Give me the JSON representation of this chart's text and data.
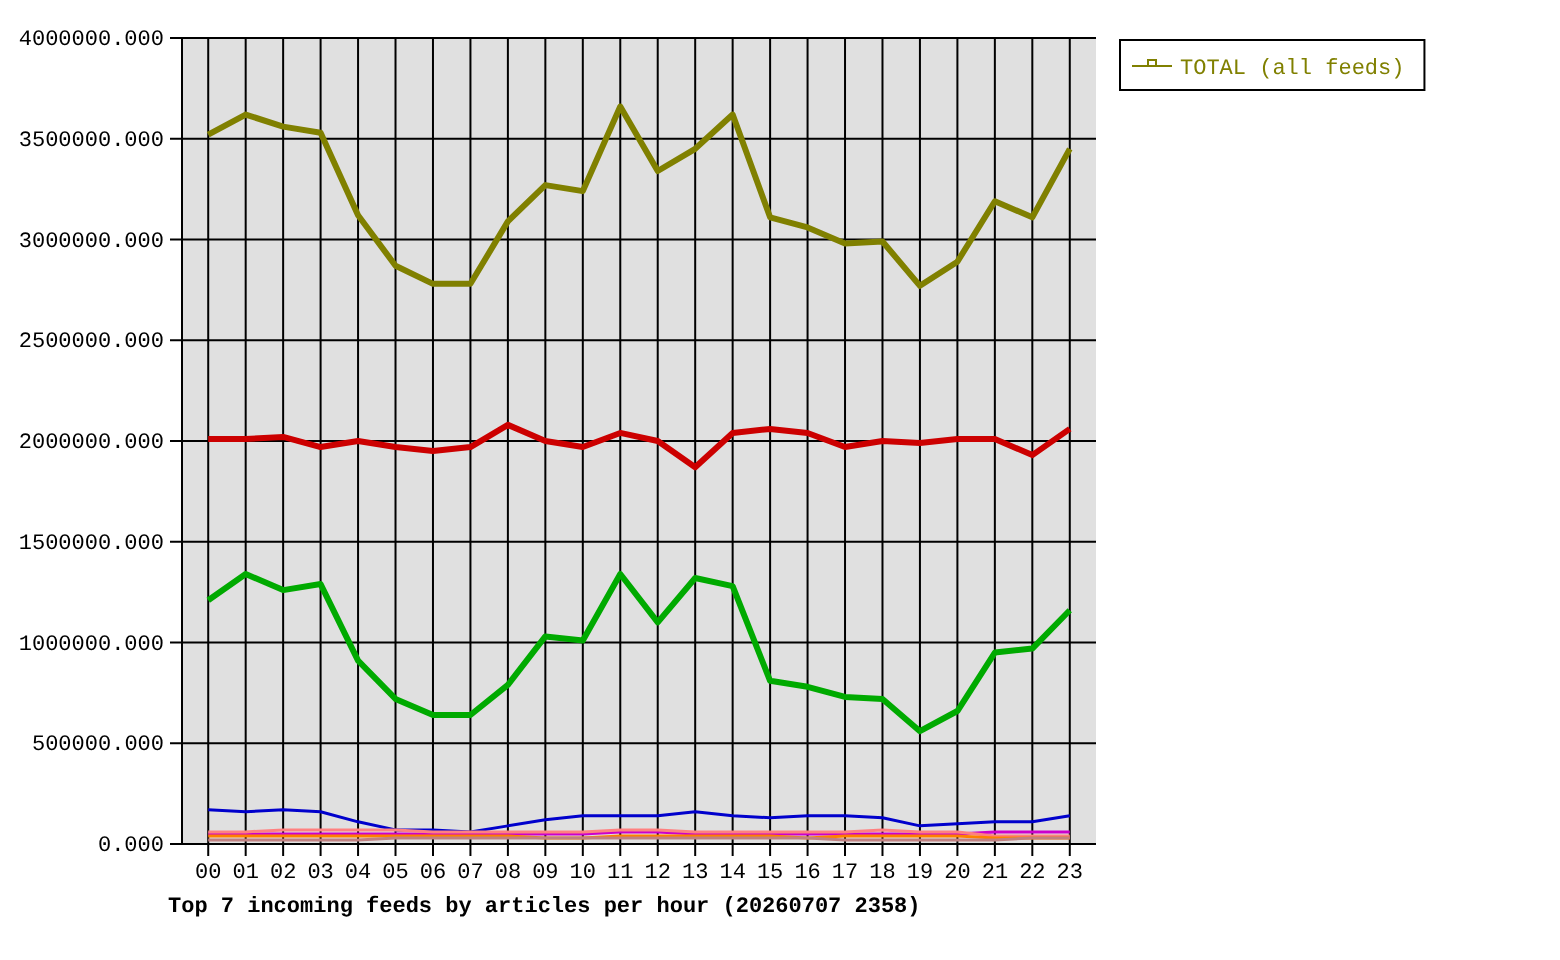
{
  "chart_data": {
    "type": "line",
    "title": "Top 7 incoming feeds by articles per hour (20260707 2358)",
    "categories": [
      "00",
      "01",
      "02",
      "03",
      "04",
      "05",
      "06",
      "07",
      "08",
      "09",
      "10",
      "11",
      "12",
      "13",
      "14",
      "15",
      "16",
      "17",
      "18",
      "19",
      "20",
      "21",
      "22",
      "23"
    ],
    "series": [
      {
        "color": "#cc0000",
        "values": [
          2010000,
          2010000,
          2020000,
          1970000,
          2000000,
          1970000,
          1950000,
          1970000,
          2080000,
          2000000,
          1970000,
          2040000,
          2000000,
          1870000,
          2040000,
          2060000,
          2040000,
          1970000,
          2000000,
          1990000,
          2010000,
          2010000,
          1930000,
          2060000
        ]
      },
      {
        "color": "#00aa00",
        "values": [
          1210000,
          1340000,
          1260000,
          1290000,
          910000,
          720000,
          640000,
          640000,
          790000,
          1030000,
          1010000,
          1340000,
          1100000,
          1320000,
          1280000,
          810000,
          780000,
          730000,
          720000,
          560000,
          660000,
          950000,
          970000,
          1160000
        ]
      },
      {
        "color": "#0000cc",
        "values": [
          170000,
          160000,
          170000,
          160000,
          110000,
          70000,
          70000,
          60000,
          90000,
          120000,
          140000,
          140000,
          140000,
          160000,
          140000,
          130000,
          140000,
          140000,
          130000,
          90000,
          100000,
          110000,
          110000,
          140000
        ]
      },
      {
        "color": "#cc00cc",
        "values": [
          50000,
          50000,
          50000,
          50000,
          50000,
          50000,
          50000,
          50000,
          50000,
          50000,
          50000,
          60000,
          60000,
          50000,
          50000,
          50000,
          50000,
          50000,
          50000,
          50000,
          50000,
          60000,
          60000,
          60000
        ]
      },
      {
        "color": "#ff8080",
        "values": [
          60000,
          60000,
          70000,
          70000,
          70000,
          70000,
          60000,
          60000,
          60000,
          60000,
          60000,
          70000,
          70000,
          60000,
          60000,
          60000,
          60000,
          60000,
          70000,
          60000,
          60000,
          40000,
          40000,
          40000
        ]
      },
      {
        "color": "#ff8000",
        "values": [
          40000,
          40000,
          40000,
          40000,
          40000,
          40000,
          40000,
          40000,
          40000,
          30000,
          30000,
          40000,
          40000,
          40000,
          40000,
          40000,
          30000,
          40000,
          40000,
          40000,
          40000,
          30000,
          30000,
          30000
        ]
      },
      {
        "color": "#c08080",
        "values": [
          20000,
          20000,
          20000,
          20000,
          20000,
          30000,
          30000,
          30000,
          30000,
          30000,
          30000,
          30000,
          30000,
          30000,
          30000,
          30000,
          30000,
          20000,
          20000,
          20000,
          20000,
          20000,
          30000,
          30000
        ]
      },
      {
        "name": "TOTAL (all feeds)",
        "color": "#808000",
        "values": [
          3520000,
          3620000,
          3560000,
          3530000,
          3120000,
          2870000,
          2780000,
          2780000,
          3090000,
          3270000,
          3240000,
          3660000,
          3340000,
          3450000,
          3620000,
          3110000,
          3060000,
          2980000,
          2990000,
          2770000,
          2890000,
          3190000,
          3110000,
          3450000
        ]
      }
    ],
    "ylim": [
      0,
      4000000
    ],
    "yticks": [
      {
        "value": 0,
        "label": "0.000"
      },
      {
        "value": 500000,
        "label": "500000.000"
      },
      {
        "value": 1000000,
        "label": "1000000.000"
      },
      {
        "value": 1500000,
        "label": "1500000.000"
      },
      {
        "value": 2000000,
        "label": "2000000.000"
      },
      {
        "value": 2500000,
        "label": "2500000.000"
      },
      {
        "value": 3000000,
        "label": "3000000.000"
      },
      {
        "value": 3500000,
        "label": "3500000.000"
      },
      {
        "value": 4000000,
        "label": "4000000.000"
      }
    ],
    "grid": true,
    "legend": "top right",
    "marker": "none",
    "line_style": "solid"
  }
}
